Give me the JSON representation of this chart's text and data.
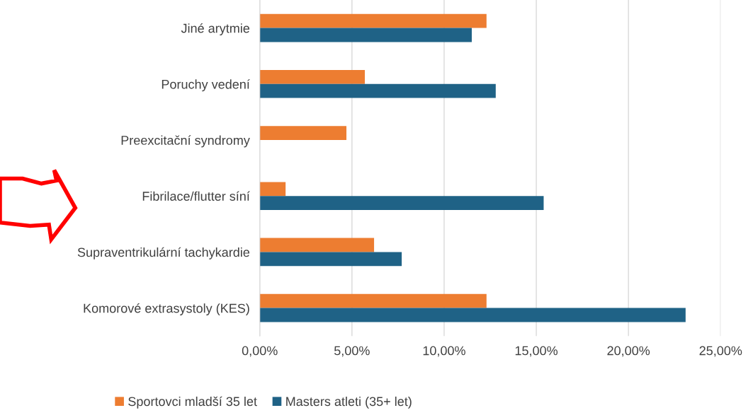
{
  "chart_data": {
    "type": "bar",
    "orientation": "horizontal",
    "categories": [
      "Jiné arytmie",
      "Poruchy vedení",
      "Preexcitační syndromy",
      "Fibrilace/flutter síní",
      "Supraventrikulární tachykardie",
      "Komorové extrasystoly (KES)"
    ],
    "series": [
      {
        "name": "Sportovci mladší 35 let",
        "color": "#ed7d31",
        "values": [
          12.3,
          5.7,
          4.7,
          1.4,
          6.2,
          12.3
        ]
      },
      {
        "name": "Masters atleti (35+ let)",
        "color": "#1f6286",
        "values": [
          11.5,
          12.8,
          null,
          15.4,
          7.7,
          23.1
        ]
      }
    ],
    "xlim": [
      0,
      25
    ],
    "xticks": [
      {
        "value": 0,
        "label": "0,00%"
      },
      {
        "value": 5,
        "label": "5,00%"
      },
      {
        "value": 10,
        "label": "10,00%"
      },
      {
        "value": 15,
        "label": "15,00%"
      },
      {
        "value": 20,
        "label": "20,00%"
      },
      {
        "value": 25,
        "label": "25,00%"
      }
    ],
    "grid": "x",
    "legend": "bottom"
  }
}
